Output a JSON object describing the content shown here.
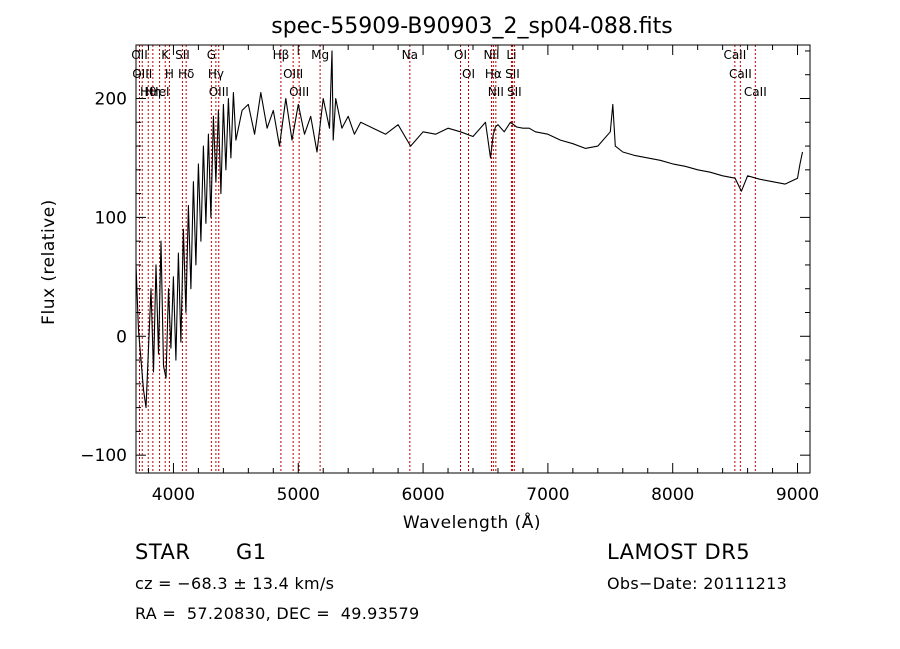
{
  "chart_data": {
    "type": "line",
    "title": "spec-55909-B90903_2_sp04-088.fits",
    "xlabel": "Wavelength (Å)",
    "ylabel": "Flux (relative)",
    "xlim": [
      3700,
      9100
    ],
    "ylim": [
      -115,
      245
    ],
    "xticks": [
      4000,
      5000,
      6000,
      7000,
      8000,
      9000
    ],
    "yticks": [
      -100,
      0,
      100,
      200
    ],
    "grid": false,
    "series": [
      {
        "x": [
          3700,
          3720,
          3740,
          3760,
          3780,
          3800,
          3820,
          3840,
          3860,
          3880,
          3900,
          3920,
          3940,
          3960,
          3980,
          4000,
          4020,
          4040,
          4060,
          4080,
          4100,
          4120,
          4140,
          4160,
          4180,
          4200,
          4220,
          4240,
          4260,
          4280,
          4300,
          4320,
          4340,
          4360,
          4380,
          4400,
          4420,
          4440,
          4460,
          4480,
          4500,
          4550,
          4600,
          4650,
          4700,
          4750,
          4800,
          4850,
          4900,
          4950,
          5000,
          5050,
          5100,
          5150,
          5200,
          5250,
          5270,
          5280,
          5300,
          5350,
          5400,
          5450,
          5500,
          5600,
          5700,
          5800,
          5900,
          6000,
          6100,
          6200,
          6300,
          6400,
          6500,
          6540,
          6563,
          6580,
          6600,
          6650,
          6700,
          6750,
          6800,
          6850,
          6900,
          7000,
          7100,
          7200,
          7300,
          7400,
          7500,
          7520,
          7540,
          7600,
          7700,
          7800,
          7900,
          8000,
          8100,
          8200,
          8300,
          8400,
          8500,
          8550,
          8600,
          8700,
          8800,
          8900,
          9000,
          9020,
          9040
        ],
        "y": [
          60,
          5,
          -20,
          -45,
          -60,
          -10,
          40,
          -30,
          60,
          -15,
          80,
          -25,
          -35,
          40,
          -10,
          50,
          -20,
          70,
          -5,
          90,
          20,
          110,
          40,
          130,
          60,
          145,
          80,
          160,
          95,
          170,
          100,
          185,
          130,
          190,
          120,
          195,
          140,
          200,
          150,
          205,
          165,
          190,
          195,
          170,
          205,
          175,
          190,
          160,
          200,
          165,
          195,
          170,
          185,
          155,
          200,
          175,
          240,
          165,
          200,
          175,
          185,
          170,
          180,
          175,
          170,
          178,
          160,
          172,
          170,
          175,
          172,
          168,
          180,
          150,
          170,
          176,
          178,
          172,
          180,
          176,
          175,
          175,
          172,
          170,
          165,
          162,
          158,
          160,
          172,
          195,
          160,
          155,
          152,
          150,
          148,
          145,
          143,
          140,
          138,
          135,
          133,
          122,
          135,
          132,
          130,
          128,
          133,
          145,
          155
        ]
      }
    ],
    "lines": [
      {
        "x": 3728,
        "label": "OII"
      },
      {
        "x": 3750,
        "label": "OIII"
      },
      {
        "x": 3798,
        "label": "Hθ"
      },
      {
        "x": 3835,
        "label": "Hη"
      },
      {
        "x": 3889,
        "label": "HeI"
      },
      {
        "x": 3934,
        "label": "K"
      },
      {
        "x": 3968,
        "label": "H"
      },
      {
        "x": 4072,
        "label": "SII"
      },
      {
        "x": 4102,
        "label": "Hδ"
      },
      {
        "x": 4340,
        "label": "Hγ"
      },
      {
        "x": 4363,
        "label": "OIII"
      },
      {
        "x": 4304,
        "label": "G"
      },
      {
        "x": 4861,
        "label": "Hβ"
      },
      {
        "x": 4959,
        "label": "OIII"
      },
      {
        "x": 5007,
        "label": "OIII"
      },
      {
        "x": 5175,
        "label": "Mg"
      },
      {
        "x": 5894,
        "label": "Na"
      },
      {
        "x": 6300,
        "label": "OI"
      },
      {
        "x": 6364,
        "label": "OI"
      },
      {
        "x": 6548,
        "label": "NII"
      },
      {
        "x": 6563,
        "label": "Hα"
      },
      {
        "x": 6583,
        "label": "NII"
      },
      {
        "x": 6708,
        "label": "Li"
      },
      {
        "x": 6716,
        "label": "SII"
      },
      {
        "x": 6731,
        "label": "SII"
      },
      {
        "x": 8498,
        "label": "CaII"
      },
      {
        "x": 8542,
        "label": "CaII"
      },
      {
        "x": 8662,
        "label": "CaII"
      }
    ]
  },
  "info": {
    "class": "STAR",
    "subclass": "G1",
    "survey": "LAMOST DR5",
    "cz": "cz = −68.3 ± 13.4 km/s",
    "obsdate": "Obs−Date: 20111213",
    "radec": "RA =  57.20830, DEC =  49.93579"
  }
}
